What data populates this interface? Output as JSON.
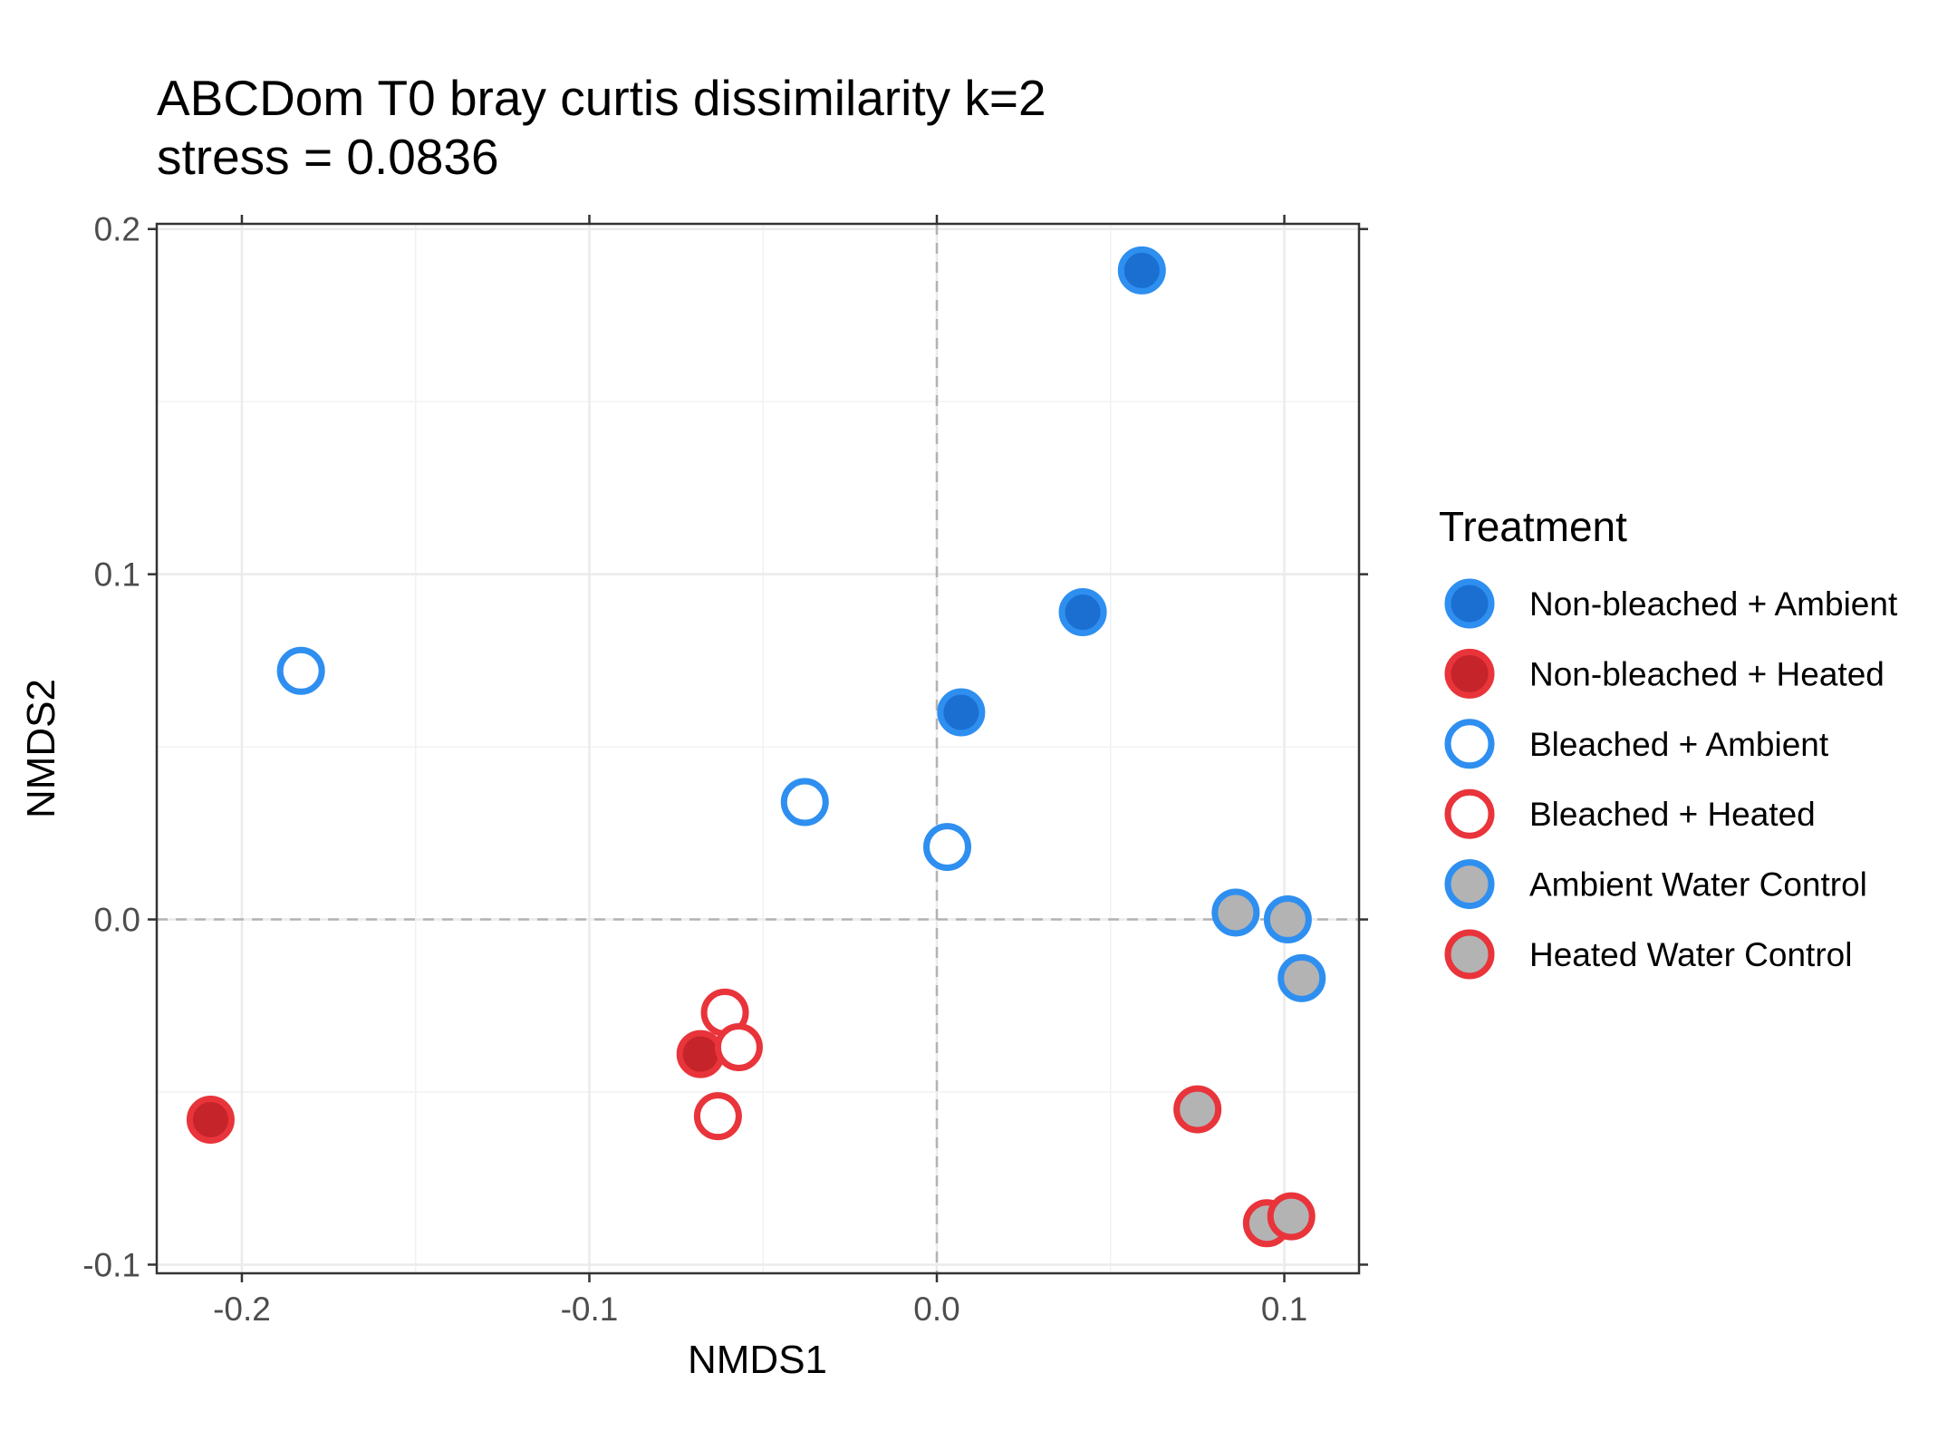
{
  "chart_data": {
    "type": "scatter",
    "title": "ABCDom T0 bray curtis dissimilarity k=2",
    "subtitle": "stress = 0.0836",
    "xlabel": "NMDS1",
    "ylabel": "NMDS2",
    "xlim": [
      -0.2245,
      0.1215
    ],
    "ylim": [
      -0.1025,
      0.2015
    ],
    "x_ticks": [
      -0.2,
      -0.1,
      0.0,
      0.1
    ],
    "x_tick_labels": [
      "-0.2",
      "-0.1",
      "0.0",
      "0.1"
    ],
    "y_ticks": [
      -0.1,
      0.0,
      0.1,
      0.2
    ],
    "y_tick_labels": [
      "-0.1",
      "0.0",
      "0.1",
      "0.2"
    ],
    "grid": true,
    "reference_lines": {
      "x": 0,
      "y": 0,
      "style": "dashed"
    },
    "legend": {
      "title": "Treatment",
      "position": "right"
    },
    "colors": {
      "ambient_outline": "#2e8ff0",
      "ambient_fill": "#1a6fd1",
      "heated_outline": "#e8343a",
      "heated_fill": "#c4242a",
      "control_fill": "#b3b3b3"
    },
    "series": [
      {
        "name": "Non-bleached + Ambient",
        "stroke": "#2e8ff0",
        "fill": "#1a6fd1",
        "points": [
          {
            "x": 0.059,
            "y": 0.188
          },
          {
            "x": 0.042,
            "y": 0.089
          },
          {
            "x": 0.007,
            "y": 0.06
          }
        ]
      },
      {
        "name": "Non-bleached + Heated",
        "stroke": "#e8343a",
        "fill": "#c4242a",
        "points": [
          {
            "x": -0.209,
            "y": -0.058
          },
          {
            "x": -0.068,
            "y": -0.039
          }
        ]
      },
      {
        "name": "Bleached + Ambient",
        "stroke": "#2e8ff0",
        "fill": "#ffffff",
        "points": [
          {
            "x": -0.183,
            "y": 0.072
          },
          {
            "x": -0.038,
            "y": 0.034
          },
          {
            "x": 0.003,
            "y": 0.021
          }
        ]
      },
      {
        "name": "Bleached + Heated",
        "stroke": "#e8343a",
        "fill": "#ffffff",
        "points": [
          {
            "x": -0.061,
            "y": -0.027
          },
          {
            "x": -0.057,
            "y": -0.037
          },
          {
            "x": -0.063,
            "y": -0.057
          }
        ]
      },
      {
        "name": "Ambient Water Control",
        "stroke": "#2e8ff0",
        "fill": "#b3b3b3",
        "points": [
          {
            "x": 0.086,
            "y": 0.002
          },
          {
            "x": 0.101,
            "y": 0.0
          },
          {
            "x": 0.105,
            "y": -0.017
          }
        ]
      },
      {
        "name": "Heated Water Control",
        "stroke": "#e8343a",
        "fill": "#b3b3b3",
        "points": [
          {
            "x": 0.075,
            "y": -0.055
          },
          {
            "x": 0.095,
            "y": -0.088
          },
          {
            "x": 0.102,
            "y": -0.086
          }
        ]
      }
    ]
  }
}
